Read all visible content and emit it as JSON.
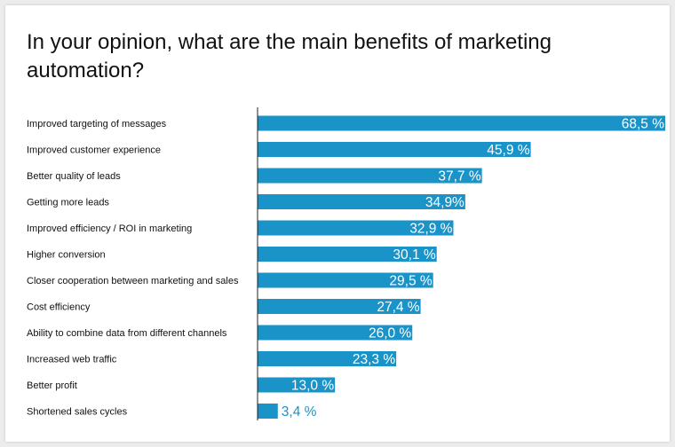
{
  "chart_data": {
    "type": "bar",
    "orientation": "horizontal",
    "title": "In your opinion, what are the main benefits of marketing automation?",
    "xlabel": "",
    "ylabel": "",
    "xlim": [
      0,
      68.5
    ],
    "grid": false,
    "legend": "none",
    "bar_color": "#1a93c9",
    "label_color_inside": "#ffffff",
    "label_color_outside": "#1a93c9",
    "categories": [
      "Improved targeting of messages",
      "Improved customer experience",
      "Better quality of leads",
      "Getting more leads",
      "Improved efficiency / ROI in marketing",
      "Higher conversion",
      "Closer cooperation between marketing and sales",
      "Cost efficiency",
      "Ability to combine data from different channels",
      "Increased web traffic",
      "Better profit",
      "Shortened sales cycles"
    ],
    "values": [
      68.5,
      45.9,
      37.7,
      34.9,
      32.9,
      30.1,
      29.5,
      27.4,
      26.0,
      23.3,
      13.0,
      3.4
    ],
    "value_labels": [
      "68,5 %",
      "45,9 %",
      "37,7 %",
      "34,9%",
      "32,9 %",
      "30,1 %",
      "29,5 %",
      "27,4 %",
      "26,0 %",
      "23,3 %",
      "13,0 %",
      "3,4 %"
    ],
    "label_outside": [
      false,
      false,
      false,
      false,
      false,
      false,
      false,
      false,
      false,
      false,
      false,
      true
    ]
  }
}
